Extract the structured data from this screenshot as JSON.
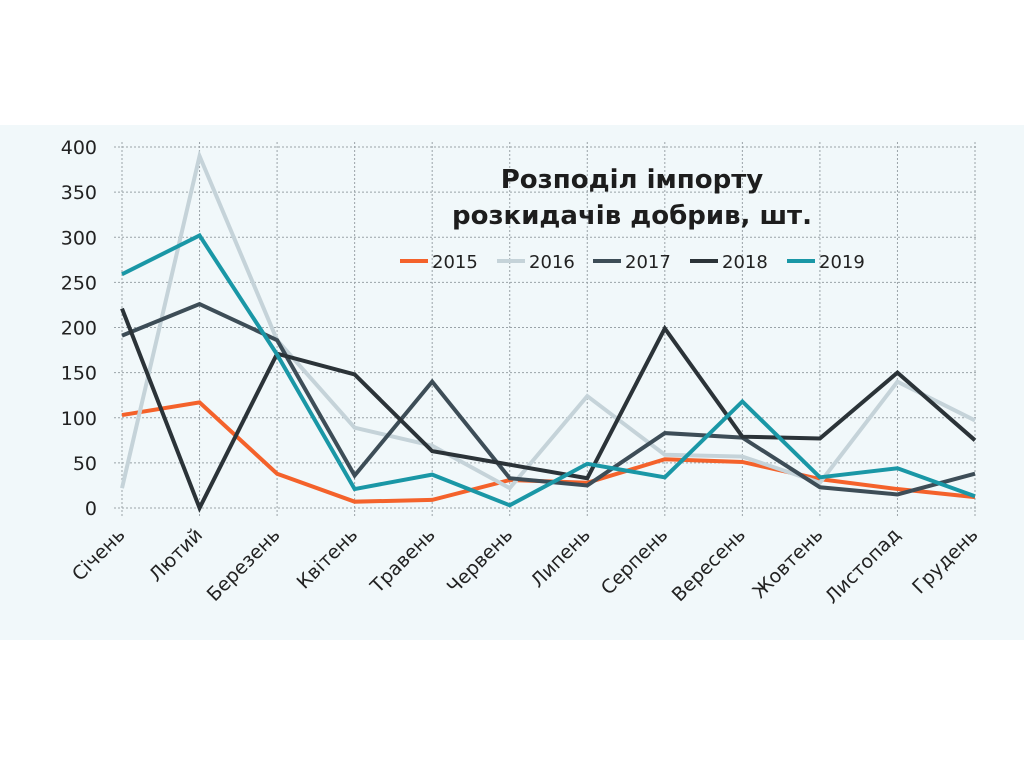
{
  "chart_data": {
    "type": "line",
    "title_lines": [
      "Розподіл імпорту",
      "розкидачів добрив, шт."
    ],
    "xlabel": "",
    "ylabel": "",
    "ylim": [
      0,
      400
    ],
    "yticks": [
      0,
      50,
      100,
      150,
      200,
      250,
      300,
      350,
      400
    ],
    "grid": true,
    "legend_position": "top-right",
    "categories": [
      "Січень",
      "Лютий",
      "Березень",
      "Квітень",
      "Травень",
      "Червень",
      "Липень",
      "Серпень",
      "Вересень",
      "Жовтень",
      "Листопад",
      "Грудень"
    ],
    "series": [
      {
        "name": "2015",
        "color": "#f4622b",
        "values": [
          103,
          117,
          38,
          7,
          9,
          31,
          28,
          54,
          51,
          32,
          21,
          12
        ]
      },
      {
        "name": "2016",
        "color": "#c5d3d9",
        "values": [
          22,
          390,
          186,
          89,
          69,
          22,
          124,
          59,
          57,
          28,
          140,
          97
        ]
      },
      {
        "name": "2017",
        "color": "#3d4d57",
        "values": [
          191,
          226,
          186,
          36,
          140,
          33,
          25,
          83,
          78,
          23,
          15,
          38
        ]
      },
      {
        "name": "2018",
        "color": "#2b3338",
        "values": [
          221,
          0,
          171,
          148,
          63,
          48,
          33,
          199,
          79,
          77,
          150,
          75
        ]
      },
      {
        "name": "2019",
        "color": "#1a97a6",
        "values": [
          259,
          302,
          170,
          21,
          37,
          3,
          49,
          34,
          118,
          34,
          44,
          13
        ]
      }
    ]
  }
}
